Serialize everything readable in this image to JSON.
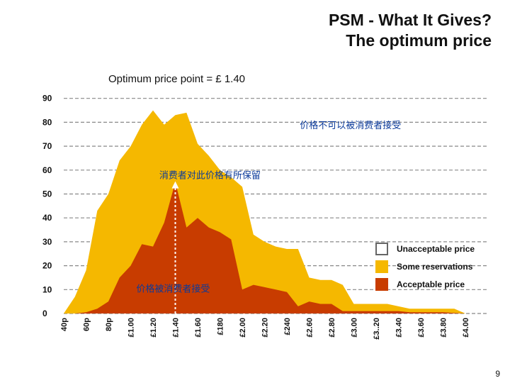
{
  "slide": {
    "title_line1": "PSM - What It Gives?",
    "title_line2": "The optimum price",
    "subtitle": "Optimum price point = £ 1.40",
    "page_number": "9"
  },
  "colors": {
    "unacceptable": "#ffffff",
    "reservations": "#f5b800",
    "acceptable": "#c83c00",
    "grid": "#888888",
    "annotation_arrow": "#ffffff",
    "annotation_text": "#0b3a9a"
  },
  "chart_data": {
    "type": "area",
    "x": [
      "40p",
      "60p",
      "80p",
      "£1.00",
      "£1.20",
      "£1.40",
      "£1.60",
      "£180",
      "£2.00",
      "£2.20",
      "£240",
      "£2.60",
      "£2.80",
      "£3.00",
      "£3..20",
      "£3.40",
      "£3.60",
      "£3.80",
      "£4.00"
    ],
    "ylim": [
      0,
      90
    ],
    "yticks": [
      0,
      10,
      20,
      30,
      40,
      50,
      60,
      70,
      80,
      90
    ],
    "grid": true,
    "legend_position": "right",
    "series": [
      {
        "name": "Acceptable price",
        "points": [
          [
            0,
            0
          ],
          [
            0.5,
            0
          ],
          [
            1,
            0.5
          ],
          [
            1.5,
            2
          ],
          [
            2,
            5
          ],
          [
            2.5,
            15
          ],
          [
            3,
            20
          ],
          [
            3.5,
            29
          ],
          [
            4,
            28
          ],
          [
            4.5,
            38
          ],
          [
            5,
            55
          ],
          [
            5.5,
            36
          ],
          [
            6,
            40
          ],
          [
            6.5,
            36
          ],
          [
            7,
            34
          ],
          [
            7.5,
            31
          ],
          [
            8,
            10
          ],
          [
            8.5,
            12
          ],
          [
            9,
            11
          ],
          [
            9.5,
            10
          ],
          [
            10,
            9
          ],
          [
            10.5,
            3
          ],
          [
            11,
            5
          ],
          [
            11.5,
            4
          ],
          [
            12,
            4
          ],
          [
            12.5,
            1
          ],
          [
            13,
            1
          ],
          [
            14,
            1
          ],
          [
            15,
            1
          ],
          [
            15.5,
            0.5
          ],
          [
            16,
            0.5
          ],
          [
            17,
            0.5
          ],
          [
            18,
            0
          ]
        ]
      },
      {
        "name": "Some reservations",
        "points": [
          [
            0,
            0
          ],
          [
            0.5,
            7
          ],
          [
            1,
            18
          ],
          [
            1.5,
            43
          ],
          [
            2,
            50
          ],
          [
            2.5,
            64
          ],
          [
            3,
            70
          ],
          [
            3.5,
            79
          ],
          [
            4,
            85
          ],
          [
            4.5,
            79
          ],
          [
            5,
            83
          ],
          [
            5.5,
            84
          ],
          [
            6,
            71
          ],
          [
            6.5,
            66
          ],
          [
            7,
            60
          ],
          [
            7.5,
            57
          ],
          [
            8,
            53
          ],
          [
            8.5,
            33
          ],
          [
            9,
            30
          ],
          [
            9.5,
            28
          ],
          [
            10,
            27
          ],
          [
            10.5,
            27
          ],
          [
            11,
            15
          ],
          [
            11.5,
            14
          ],
          [
            12,
            14
          ],
          [
            12.5,
            12
          ],
          [
            13,
            4
          ],
          [
            13.5,
            4
          ],
          [
            14,
            4
          ],
          [
            14.5,
            4
          ],
          [
            15,
            3
          ],
          [
            15.5,
            2
          ],
          [
            16,
            2
          ],
          [
            16.5,
            2
          ],
          [
            17,
            2
          ],
          [
            17.5,
            2
          ],
          [
            18,
            0
          ]
        ]
      },
      {
        "name": "Unacceptable price",
        "points": []
      }
    ],
    "annotations": [
      {
        "text": "价格不可以被消费者接受",
        "x": 12.85,
        "y": 79
      },
      {
        "text": "消费者对此价格有所保留",
        "x": 6.55,
        "y": 58
      },
      {
        "text": "价格被消费者接受",
        "x": 4.9,
        "y": 10.5
      }
    ],
    "optimum_marker": {
      "x": 5,
      "y_from": 0,
      "y_to": 55
    }
  }
}
